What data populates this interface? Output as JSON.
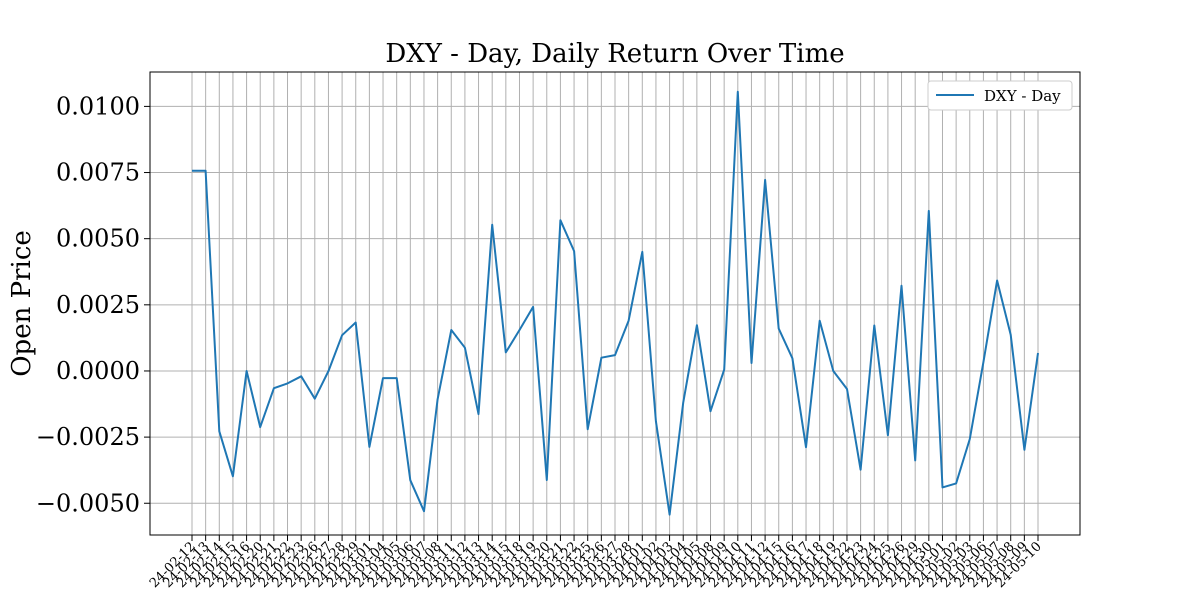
{
  "chart_data": {
    "type": "line",
    "title": "DXY - Day, Daily Return Over Time",
    "xlabel": "",
    "ylabel": "Open Price",
    "grid": true,
    "legend": "top-right",
    "ylim": [
      -0.0062,
      0.0113
    ],
    "y_ticks": [
      -0.005,
      -0.0025,
      0.0,
      0.0025,
      0.005,
      0.0075,
      0.01
    ],
    "y_tick_labels": [
      "−0.0050",
      "−0.0025",
      "0.0000",
      "0.0025",
      "0.0050",
      "0.0075",
      "0.0100"
    ],
    "x": [
      "24-02-12",
      "24-02-13",
      "24-02-14",
      "24-02-15",
      "24-02-16",
      "24-02-20",
      "24-02-21",
      "24-02-22",
      "24-02-23",
      "24-02-26",
      "24-02-27",
      "24-02-28",
      "24-02-29",
      "24-03-01",
      "24-03-04",
      "24-03-05",
      "24-03-06",
      "24-03-07",
      "24-03-08",
      "24-03-11",
      "24-03-12",
      "24-03-13",
      "24-03-14",
      "24-03-15",
      "24-03-18",
      "24-03-19",
      "24-03-20",
      "24-03-21",
      "24-03-22",
      "24-03-25",
      "24-03-26",
      "24-03-27",
      "24-03-28",
      "24-04-01",
      "24-04-02",
      "24-04-03",
      "24-04-04",
      "24-04-05",
      "24-04-08",
      "24-04-09",
      "24-04-10",
      "24-04-11",
      "24-04-12",
      "24-04-15",
      "24-04-16",
      "24-04-17",
      "24-04-18",
      "24-04-19",
      "24-04-22",
      "24-04-23",
      "24-04-24",
      "24-04-25",
      "24-04-26",
      "24-04-29",
      "24-04-30",
      "24-05-01",
      "24-05-02",
      "24-05-03",
      "24-05-06",
      "24-05-07",
      "24-05-08",
      "24-05-09",
      "24-05-10"
    ],
    "series": [
      {
        "name": "DXY - Day",
        "color": "#1f77b4",
        "values": [
          0.00757,
          0.00757,
          -0.00228,
          -0.00398,
          0.0,
          -0.00212,
          -0.00065,
          -0.00047,
          -0.0002,
          -0.00105,
          0.0,
          0.00135,
          0.00183,
          -0.00287,
          -0.00027,
          -0.00027,
          -0.00413,
          -0.0053,
          -0.00107,
          0.00155,
          0.00088,
          -0.00163,
          0.00553,
          0.0007,
          0.00155,
          0.00242,
          -0.00412,
          0.0057,
          0.00453,
          -0.0022,
          0.0005,
          0.0006,
          0.0019,
          0.0045,
          -0.0019,
          -0.00543,
          -0.0012,
          0.00173,
          -0.00152,
          5e-05,
          0.01055,
          0.0003,
          0.00722,
          0.0016,
          0.00048,
          -0.00288,
          0.0019,
          0.0,
          -0.00068,
          -0.00373,
          0.00172,
          -0.00243,
          0.00322,
          -0.00338,
          0.00605,
          -0.0044,
          -0.00425,
          -0.00257,
          0.00033,
          0.00342,
          0.00137,
          -0.00298,
          0.00068
        ]
      }
    ]
  }
}
